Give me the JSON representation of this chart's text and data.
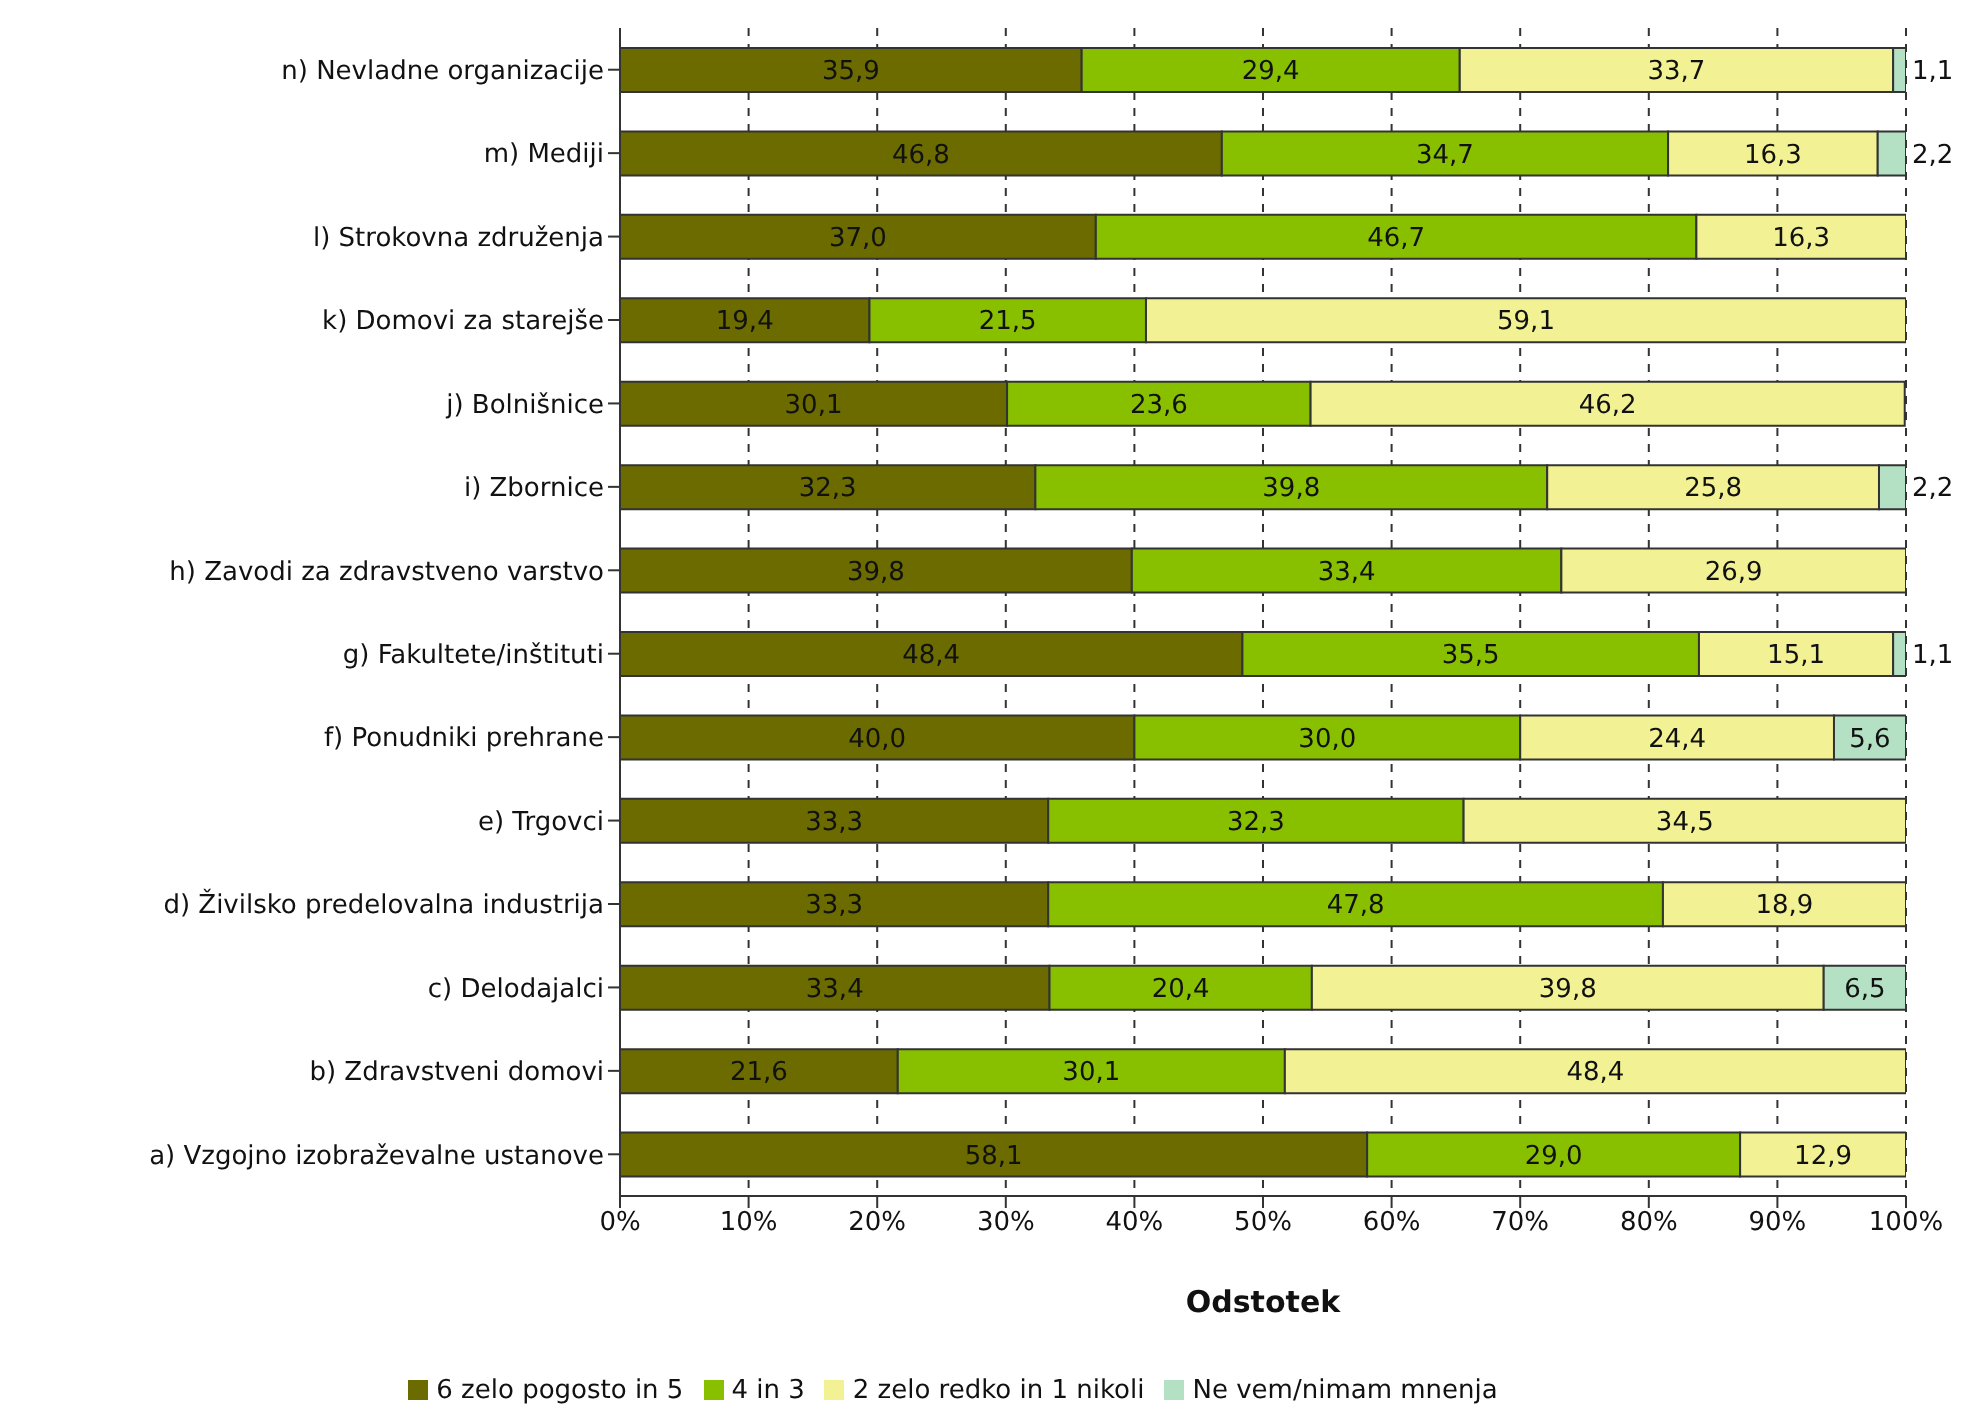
{
  "chart_data": {
    "type": "bar",
    "orientation": "horizontal",
    "stacked": true,
    "xlabel": "Odstotek",
    "categories": [
      "n) Nevladne organizacije",
      "m) Mediji",
      "l) Strokovna združenja",
      "k) Domovi za starejše",
      "j) Bolnišnice",
      "i) Zbornice",
      "h) Zavodi za zdravstveno varstvo",
      "g) Fakultete/inštituti",
      "f) Ponudniki prehrane",
      "e) Trgovci",
      "d) Živilsko predelovalna industrija",
      "c) Delodajalci",
      "b) Zdravstveni domovi",
      "a) Vzgojno izobraževalne ustanove"
    ],
    "series": [
      {
        "name": "6 zelo pogosto in 5",
        "color": "#6b6b00",
        "values": [
          35.9,
          46.8,
          37.0,
          19.4,
          30.1,
          32.3,
          39.8,
          48.4,
          40.0,
          33.3,
          33.3,
          33.4,
          21.6,
          58.1
        ],
        "value_labels": [
          "35,9",
          "46,8",
          "37,0",
          "19,4",
          "30,1",
          "32,3",
          "39,8",
          "48,4",
          "40,0",
          "33,3",
          "33,3",
          "33,4",
          "21,6",
          "58,1"
        ]
      },
      {
        "name": "4 in 3",
        "color": "#88c000",
        "values": [
          29.4,
          34.7,
          46.7,
          21.5,
          23.6,
          39.8,
          33.4,
          35.5,
          30.0,
          32.3,
          47.8,
          20.4,
          30.1,
          29.0
        ],
        "value_labels": [
          "29,4",
          "34,7",
          "46,7",
          "21,5",
          "23,6",
          "39,8",
          "33,4",
          "35,5",
          "30,0",
          "32,3",
          "47,8",
          "20,4",
          "30,1",
          "29,0"
        ]
      },
      {
        "name": "2 zelo redko  in 1 nikoli",
        "color": "#f2f294",
        "values": [
          33.7,
          16.3,
          16.3,
          59.1,
          46.2,
          25.8,
          26.9,
          15.1,
          24.4,
          34.5,
          18.9,
          39.8,
          48.4,
          12.9
        ],
        "value_labels": [
          "33,7",
          "16,3",
          "16,3",
          "59,1",
          "46,2",
          "25,8",
          "26,9",
          "15,1",
          "24,4",
          "34,5",
          "18,9",
          "39,8",
          "48,4",
          "12,9"
        ]
      },
      {
        "name": "Ne vem/nimam mnenja",
        "color": "#b4e0c4",
        "values": [
          1.1,
          2.2,
          null,
          null,
          null,
          2.2,
          null,
          1.1,
          5.6,
          null,
          null,
          6.5,
          null,
          null
        ],
        "value_labels": [
          "1,1",
          "2,2",
          null,
          null,
          null,
          "2,2",
          null,
          "1,1",
          "5,6",
          null,
          null,
          "6,5",
          null,
          null
        ]
      }
    ],
    "xlim": [
      0,
      100
    ],
    "xticks": [
      {
        "value": 0,
        "label": "0%"
      },
      {
        "value": 10,
        "label": "10%"
      },
      {
        "value": 20,
        "label": "20%"
      },
      {
        "value": 30,
        "label": "30%"
      },
      {
        "value": 40,
        "label": "40%"
      },
      {
        "value": 50,
        "label": "50%"
      },
      {
        "value": 60,
        "label": "60%"
      },
      {
        "value": 70,
        "label": "70%"
      },
      {
        "value": 80,
        "label": "80%"
      },
      {
        "value": 90,
        "label": "90%"
      },
      {
        "value": 100,
        "label": "100%"
      }
    ],
    "grid": "x",
    "legend": "bottom"
  }
}
